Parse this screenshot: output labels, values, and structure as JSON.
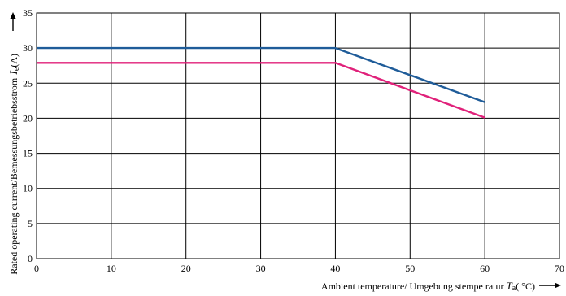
{
  "chart_data": {
    "type": "line",
    "title": "",
    "xlabel": {
      "prefix": "Ambient temperature/ Umgebung stempe ratur ",
      "symbol": "T",
      "subscript": "a",
      "unit": "( °C)"
    },
    "ylabel": {
      "description": "Rated operating current/Bemessungsbetriebsstrom",
      "symbol": "I",
      "subscript": "e",
      "unit": "(A)"
    },
    "xlim": [
      0,
      70
    ],
    "ylim": [
      0,
      35
    ],
    "x_ticks": [
      "0",
      "10",
      "20",
      "30",
      "40",
      "50",
      "60",
      "70"
    ],
    "y_ticks": [
      "0",
      "5",
      "10",
      "15",
      "20",
      "25",
      "30",
      "35"
    ],
    "grid": true,
    "legend": "none",
    "series": [
      {
        "color": "#1f5c99",
        "points": [
          [
            0,
            30
          ],
          [
            40,
            30
          ],
          [
            60,
            22.3
          ]
        ]
      },
      {
        "color": "#e0217a",
        "points": [
          [
            0,
            27.9
          ],
          [
            40,
            27.9
          ],
          [
            60,
            20.1
          ]
        ]
      }
    ]
  }
}
